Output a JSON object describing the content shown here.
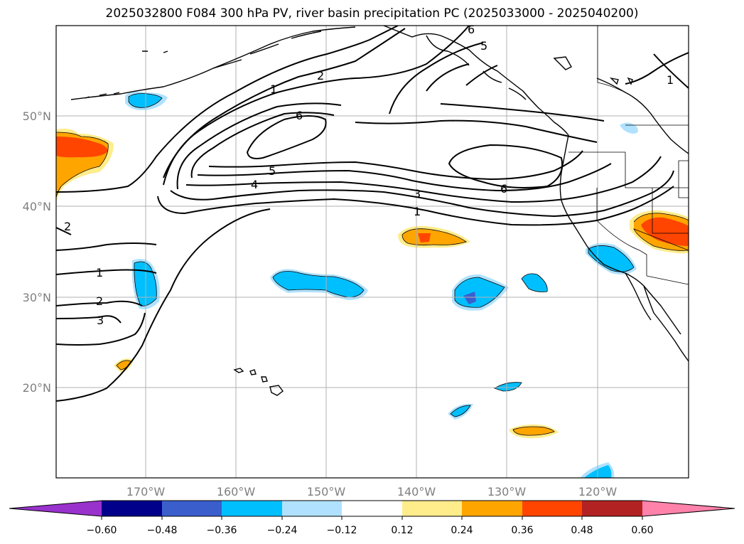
{
  "title": "2025032800 F084 300 hPa PV, river basin precipitation PC (2025033000 - 2025040200)",
  "map": {
    "lat_labels": [
      "50°N",
      "40°N",
      "30°N",
      "20°N"
    ],
    "lon_labels": [
      "170°W",
      "160°W",
      "150°W",
      "140°W",
      "130°W",
      "120°W"
    ],
    "contour_labels": [
      "1",
      "2",
      "6",
      "5",
      "4",
      "3",
      "1",
      "6",
      "2",
      "1",
      "2",
      "3",
      "6",
      "5",
      "1"
    ]
  },
  "colorbar": {
    "ticks": [
      "−0.60",
      "−0.48",
      "−0.36",
      "−0.24",
      "−0.12",
      "0.12",
      "0.24",
      "0.36",
      "0.48",
      "0.60"
    ],
    "colors": [
      "#9932cc",
      "#00008b",
      "#3a5fcd",
      "#00bfff",
      "#b0e2ff",
      "#ffffff",
      "#ffec8b",
      "#ffa500",
      "#ff4500",
      "#b22222",
      "#ff82ab"
    ]
  },
  "colors": {
    "light_blue": "#b0e2ff",
    "blue": "#00bfff",
    "mid_blue": "#3a5fcd",
    "yellow": "#ffec8b",
    "orange": "#ffa500",
    "red_orange": "#ff4500",
    "grid": "#b0b0b0"
  }
}
